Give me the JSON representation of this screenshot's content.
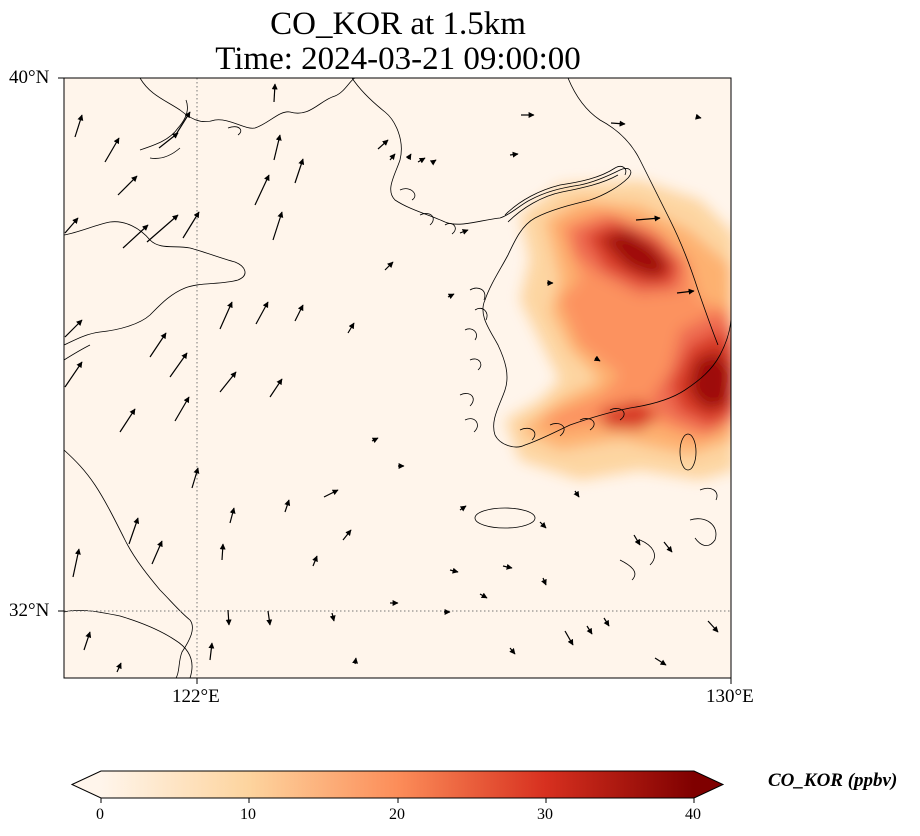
{
  "title": {
    "line1": "CO_KOR at 1.5km",
    "line2": "Time: 2024-03-21 09:00:00"
  },
  "map": {
    "extent": {
      "lon": [
        120,
        130
      ],
      "lat": [
        31,
        40
      ]
    },
    "lat_ticks": [
      {
        "value": 40,
        "label": "40°N"
      },
      {
        "value": 32,
        "label": "32°N"
      }
    ],
    "lon_ticks": [
      {
        "value": 122,
        "label": "122°E"
      },
      {
        "value": 130,
        "label": "130°E"
      }
    ],
    "gridlines": "dotted",
    "background_color": "#fff5eb",
    "coastline_color": "#000000",
    "plume_regions": [
      "northern Korean peninsula plume",
      "southern Korean coast plume"
    ]
  },
  "colorbar": {
    "label": "CO_KOR (ppbv)",
    "range": [
      0,
      40
    ],
    "ticks": [
      "0",
      "10",
      "20",
      "30",
      "40"
    ],
    "colormap": "OrRd",
    "colors": [
      "#fff5eb",
      "#fdd49e",
      "#fc8d59",
      "#d7301f",
      "#7f0000"
    ],
    "extend": "both"
  }
}
